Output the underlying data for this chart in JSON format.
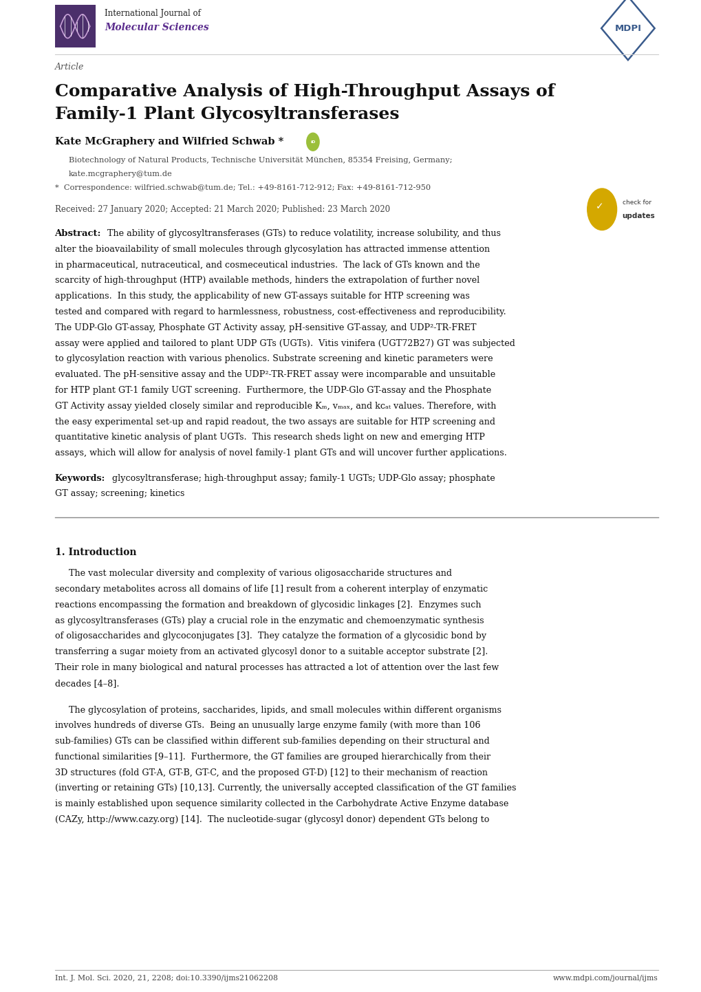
{
  "bg_color": "#ffffff",
  "lm": 0.078,
  "rm": 0.938,
  "journal_name1": "International Journal of",
  "journal_name2": "Molecular Sciences",
  "mdpi_text": "MDPI",
  "article_label": "Article",
  "title_line1": "Comparative Analysis of High-Throughput Assays of",
  "title_line2": "Family-1 Plant Glycosyltransferases",
  "authors": "Kate McGraphery and Wilfried Schwab *",
  "affiliation1": "Biotechnology of Natural Products, Technische Universität München, 85354 Freising, Germany;",
  "affiliation2": "kate.mcgraphery@tum.de",
  "correspondence": "*  Correspondence: wilfried.schwab@tum.de; Tel.: +49-8161-712-912; Fax: +49-8161-712-950",
  "dates": "Received: 27 January 2020; Accepted: 21 March 2020; Published: 23 March 2020",
  "abstract_lines": [
    "The ability of glycosyltransferases (GTs) to reduce volatility, increase solubility, and thus",
    "alter the bioavailability of small molecules through glycosylation has attracted immense attention",
    "in pharmaceutical, nutraceutical, and cosmeceutical industries.  The lack of GTs known and the",
    "scarcity of high-throughput (HTP) available methods, hinders the extrapolation of further novel",
    "applications.  In this study, the applicability of new GT-assays suitable for HTP screening was",
    "tested and compared with regard to harmlessness, robustness, cost-effectiveness and reproducibility.",
    "The UDP-Glo GT-assay, Phosphate GT Activity assay, pH-sensitive GT-assay, and UDP²-TR-FRET",
    "assay were applied and tailored to plant UDP GTs (UGTs).  Vitis vinifera (UGT72B27) GT was subjected",
    "to glycosylation reaction with various phenolics. Substrate screening and kinetic parameters were",
    "evaluated. The pH-sensitive assay and the UDP²-TR-FRET assay were incomparable and unsuitable",
    "for HTP plant GT-1 family UGT screening.  Furthermore, the UDP-Glo GT-assay and the Phosphate",
    "GT Activity assay yielded closely similar and reproducible Kₘ, vₘₐₓ, and kᴄₐₜ values. Therefore, with",
    "the easy experimental set-up and rapid readout, the two assays are suitable for HTP screening and",
    "quantitative kinetic analysis of plant UGTs.  This research sheds light on new and emerging HTP",
    "assays, which will allow for analysis of novel family-1 plant GTs and will uncover further applications."
  ],
  "keywords_line1": "glycosyltransferase; high-throughput assay; family-1 UGTs; UDP-Glo assay; phosphate",
  "keywords_line2": "GT assay; screening; kinetics",
  "section1": "1. Introduction",
  "intro_p1_lines": [
    "     The vast molecular diversity and complexity of various oligosaccharide structures and",
    "secondary metabolites across all domains of life [1] result from a coherent interplay of enzymatic",
    "reactions encompassing the formation and breakdown of glycosidic linkages [2].  Enzymes such",
    "as glycosyltransferases (GTs) play a crucial role in the enzymatic and chemoenzymatic synthesis",
    "of oligosaccharides and glycoconjugates [3].  They catalyze the formation of a glycosidic bond by",
    "transferring a sugar moiety from an activated glycosyl donor to a suitable acceptor substrate [2].",
    "Their role in many biological and natural processes has attracted a lot of attention over the last few",
    "decades [4–8]."
  ],
  "intro_p2_lines": [
    "     The glycosylation of proteins, saccharides, lipids, and small molecules within different organisms",
    "involves hundreds of diverse GTs.  Being an unusually large enzyme family (with more than 106",
    "sub-families) GTs can be classified within different sub-families depending on their structural and",
    "functional similarities [9–11].  Furthermore, the GT families are grouped hierarchically from their",
    "3D structures (fold GT-A, GT-B, GT-C, and the proposed GT-D) [12] to their mechanism of reaction",
    "(inverting or retaining GTs) [10,13]. Currently, the universally accepted classification of the GT families",
    "is mainly established upon sequence similarity collected in the Carbohydrate Active Enzyme database",
    "(CAZy, http://www.cazy.org) [14].  The nucleotide-sugar (glycosyl donor) dependent GTs belong to"
  ],
  "footer_left": "Int. J. Mol. Sci. 2020, 21, 2208; doi:10.3390/ijms21062208",
  "footer_right": "www.mdpi.com/journal/ijms",
  "logo_color": "#4B2F6B",
  "journal_purple": "#5B2D8E",
  "mdpi_blue": "#3A5B8C",
  "text_gray": "#444444",
  "text_black": "#111111",
  "link_blue": "#1155BB"
}
